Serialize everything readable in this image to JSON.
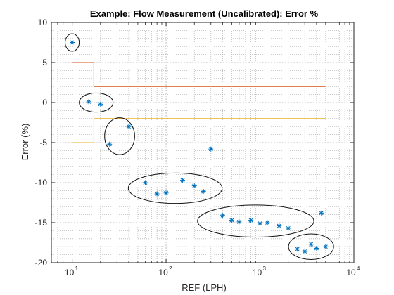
{
  "chart_data": {
    "type": "scatter",
    "title": "Example: Flow Measurement (Uncalibrated): Error %",
    "xlabel": "REF (LPH)",
    "ylabel": "Error (%)",
    "xscale": "log",
    "xlim": [
      6,
      10000
    ],
    "ylim": [
      -20,
      10
    ],
    "grid": true,
    "minor_grid": true,
    "x_ticks": [
      {
        "value": 10,
        "base": "10",
        "exp": "1"
      },
      {
        "value": 100,
        "base": "10",
        "exp": "2"
      },
      {
        "value": 1000,
        "base": "10",
        "exp": "3"
      },
      {
        "value": 10000,
        "base": "10",
        "exp": "4"
      }
    ],
    "y_ticks": [
      {
        "value": 10,
        "label": "10"
      },
      {
        "value": 5,
        "label": "5"
      },
      {
        "value": 0,
        "label": "0"
      },
      {
        "value": -5,
        "label": "-5"
      },
      {
        "value": -10,
        "label": "-10"
      },
      {
        "value": -15,
        "label": "-15"
      },
      {
        "value": -20,
        "label": "-20"
      }
    ],
    "series": [
      {
        "type": "scatter",
        "marker": "*",
        "color": "#0072bd",
        "points": [
          {
            "x": 10,
            "y": 7.5
          },
          {
            "x": 15,
            "y": 0.1
          },
          {
            "x": 20,
            "y": -0.2
          },
          {
            "x": 25,
            "y": -5.2
          },
          {
            "x": 40,
            "y": -3.0
          },
          {
            "x": 60,
            "y": -10.0
          },
          {
            "x": 80,
            "y": -11.4
          },
          {
            "x": 100,
            "y": -11.3
          },
          {
            "x": 150,
            "y": -9.7
          },
          {
            "x": 200,
            "y": -10.4
          },
          {
            "x": 250,
            "y": -11.1
          },
          {
            "x": 300,
            "y": -5.8
          },
          {
            "x": 400,
            "y": -14.1
          },
          {
            "x": 500,
            "y": -14.7
          },
          {
            "x": 600,
            "y": -14.9
          },
          {
            "x": 800,
            "y": -14.7
          },
          {
            "x": 1000,
            "y": -15.1
          },
          {
            "x": 1200,
            "y": -15.0
          },
          {
            "x": 1600,
            "y": -15.4
          },
          {
            "x": 2000,
            "y": -15.7
          },
          {
            "x": 2500,
            "y": -18.3
          },
          {
            "x": 3000,
            "y": -18.6
          },
          {
            "x": 3500,
            "y": -17.7
          },
          {
            "x": 4000,
            "y": -18.2
          },
          {
            "x": 4500,
            "y": -13.8
          },
          {
            "x": 5000,
            "y": -18.0
          }
        ]
      },
      {
        "type": "line",
        "color": "#d95319",
        "points": [
          {
            "x": 10,
            "y": 5
          },
          {
            "x": 17,
            "y": 5
          },
          {
            "x": 17,
            "y": 2
          },
          {
            "x": 5000,
            "y": 2
          }
        ]
      },
      {
        "type": "line",
        "color": "#edb120",
        "points": [
          {
            "x": 10,
            "y": -5
          },
          {
            "x": 17,
            "y": -5
          },
          {
            "x": 17,
            "y": -2
          },
          {
            "x": 5000,
            "y": -2
          }
        ]
      }
    ],
    "annotations": [
      {
        "type": "ellipse",
        "cx": 10,
        "cy": 7.5,
        "x_half_decades": 0.075,
        "y_half": 1.1
      },
      {
        "type": "ellipse",
        "cx": 18,
        "cy": 0.0,
        "x_half_decades": 0.18,
        "y_half": 1.2
      },
      {
        "type": "ellipse",
        "cx": 32,
        "cy": -4.2,
        "x_half_decades": 0.16,
        "y_half": 2.3
      },
      {
        "type": "ellipse",
        "cx": 125,
        "cy": -10.7,
        "x_half_decades": 0.5,
        "y_half": 1.9
      },
      {
        "type": "ellipse",
        "cx": 900,
        "cy": -14.8,
        "x_half_decades": 0.62,
        "y_half": 2.0
      },
      {
        "type": "ellipse",
        "cx": 3500,
        "cy": -18.0,
        "x_half_decades": 0.24,
        "y_half": 1.6
      }
    ]
  }
}
